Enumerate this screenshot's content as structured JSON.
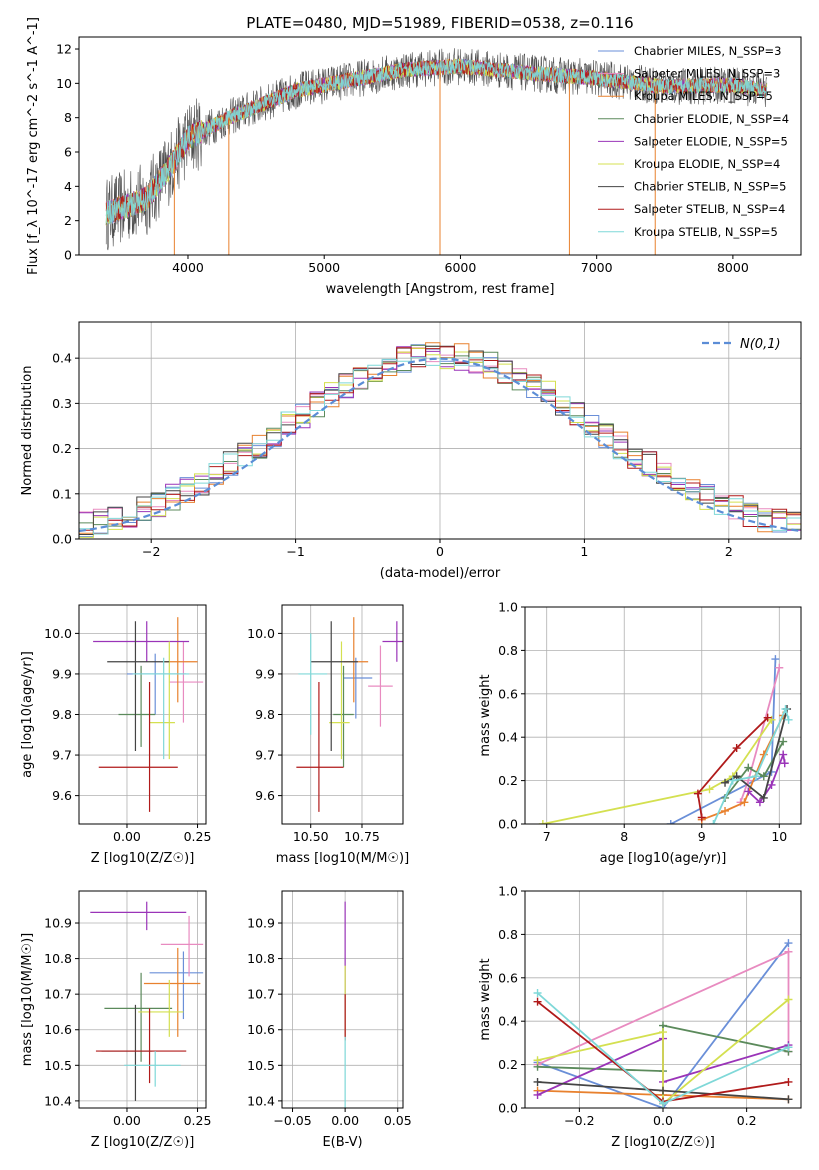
{
  "figure_title": "PLATE=0480, MJD=51989, FIBERID=0538, z=0.116",
  "legend_entries": [
    {
      "name": "Chabrier MILES, N_SSP=3",
      "color": "#6a8fd8"
    },
    {
      "name": "Salpeter MILES, N_SSP=3",
      "color": "#e88bc0"
    },
    {
      "name": "Kroupa MILES, N_SSP=5",
      "color": "#e8812e"
    },
    {
      "name": "Chabrier ELODIE, N_SSP=4",
      "color": "#5b8a5b"
    },
    {
      "name": "Salpeter ELODIE, N_SSP=5",
      "color": "#9a34b8"
    },
    {
      "name": "Kroupa ELODIE, N_SSP=4",
      "color": "#d4e050"
    },
    {
      "name": "Chabrier STELIB, N_SSP=5",
      "color": "#444444"
    },
    {
      "name": "Salpeter STELIB, N_SSP=4",
      "color": "#b01a1a"
    },
    {
      "name": "Kroupa STELIB, N_SSP=5",
      "color": "#7fd8d8"
    }
  ],
  "chart_data": [
    {
      "id": "spectrum",
      "type": "line",
      "xlabel": "wavelength [Angstrom, rest frame]",
      "ylabel": "Flux [f_λ 10^-17 erg cm^-2 s^-1 A^-1]",
      "xlim": [
        3200,
        8500
      ],
      "ylim": [
        0,
        12.7
      ],
      "xticks": [
        4000,
        5000,
        6000,
        7000,
        8000
      ],
      "yticks": [
        0,
        2,
        4,
        6,
        8,
        10,
        12
      ],
      "x_range_data": [
        3400,
        8250
      ],
      "continuum": [
        [
          3400,
          2.4
        ],
        [
          3700,
          3.3
        ],
        [
          3900,
          5.5
        ],
        [
          4000,
          6.8
        ],
        [
          4300,
          8.0
        ],
        [
          4800,
          9.6
        ],
        [
          5200,
          10.2
        ],
        [
          5600,
          10.8
        ],
        [
          6000,
          11.0
        ],
        [
          6500,
          10.6
        ],
        [
          7000,
          10.3
        ],
        [
          7500,
          9.8
        ],
        [
          8000,
          9.9
        ],
        [
          8250,
          9.6
        ]
      ],
      "drops": [
        [
          3900,
          0
        ],
        [
          4300,
          0
        ],
        [
          5850,
          0
        ],
        [
          6800,
          0
        ],
        [
          7430,
          0
        ]
      ]
    },
    {
      "id": "residuals",
      "type": "histogram",
      "xlabel": "(data-model)/error",
      "ylabel": "Normed distribution",
      "xlim": [
        -2.5,
        2.5
      ],
      "ylim": [
        0,
        0.48
      ],
      "xticks": [
        -2,
        -1,
        0,
        1,
        2
      ],
      "yticks": [
        0.0,
        0.1,
        0.2,
        0.3,
        0.4
      ],
      "normal_label": "N(0,1)",
      "bin_width": 0.1
    },
    {
      "id": "age_vs_Z",
      "type": "errorbar",
      "xlabel": "Z [log10(Z/Z☉)]",
      "ylabel": "age [log10(age/yr)]",
      "xlim": [
        -0.17,
        0.28
      ],
      "ylim": [
        9.53,
        10.07
      ],
      "xticks": [
        0.0,
        0.25
      ],
      "yticks": [
        9.6,
        9.7,
        9.8,
        9.9,
        10.0
      ],
      "points": [
        {
          "series": "Chabrier MILES",
          "x": 0.1,
          "y": 9.9,
          "xerr": [
            0.1,
            0.11
          ],
          "yerr": [
            0.1,
            0.05
          ]
        },
        {
          "series": "Salpeter MILES",
          "x": 0.2,
          "y": 9.88,
          "xerr": [
            0.05,
            0.07
          ],
          "yerr": [
            0.1,
            0.1
          ]
        },
        {
          "series": "Kroupa MILES",
          "x": 0.18,
          "y": 9.93,
          "xerr": [
            0.05,
            0.07
          ],
          "yerr": [
            0.1,
            0.11
          ]
        },
        {
          "series": "Chabrier ELODIE",
          "x": 0.05,
          "y": 9.8,
          "xerr": [
            0.08,
            0.05
          ],
          "yerr": [
            0.08,
            0.12
          ]
        },
        {
          "series": "Salpeter ELODIE",
          "x": 0.07,
          "y": 9.98,
          "xerr": [
            0.19,
            0.15
          ],
          "yerr": [
            0.05,
            0.05
          ]
        },
        {
          "series": "Kroupa ELODIE",
          "x": 0.15,
          "y": 9.78,
          "xerr": [
            0.07,
            0.02
          ],
          "yerr": [
            0.09,
            0.2
          ]
        },
        {
          "series": "Chabrier STELIB",
          "x": 0.03,
          "y": 9.93,
          "xerr": [
            0.1,
            0.12
          ],
          "yerr": [
            0.22,
            0.1
          ]
        },
        {
          "series": "Salpeter STELIB",
          "x": 0.08,
          "y": 9.67,
          "xerr": [
            0.18,
            0.1
          ],
          "yerr": [
            0.11,
            0.21
          ]
        },
        {
          "series": "Kroupa STELIB",
          "x": 0.13,
          "y": 9.9,
          "xerr": [
            0.11,
            0.09
          ],
          "yerr": [
            0.21,
            0.04
          ]
        }
      ]
    },
    {
      "id": "age_vs_mass",
      "type": "errorbar",
      "xlabel": "mass [log10(M/M☉)]",
      "ylabel": "",
      "xlim": [
        10.36,
        10.95
      ],
      "ylim": [
        9.53,
        10.07
      ],
      "xticks": [
        10.5,
        10.75
      ],
      "yticks": [
        9.6,
        9.7,
        9.8,
        9.9,
        10.0
      ],
      "points": [
        {
          "series": "Chabrier MILES",
          "x": 10.72,
          "y": 9.89,
          "xerr": [
            0.06,
            0.08
          ],
          "yerr": [
            0.1,
            0.05
          ]
        },
        {
          "series": "Salpeter MILES",
          "x": 10.84,
          "y": 9.87,
          "xerr": [
            0.06,
            0.06
          ],
          "yerr": [
            0.1,
            0.1
          ]
        },
        {
          "series": "Kroupa MILES",
          "x": 10.71,
          "y": 9.93,
          "xerr": [
            0.05,
            0.07
          ],
          "yerr": [
            0.1,
            0.11
          ]
        },
        {
          "series": "Chabrier ELODIE",
          "x": 10.66,
          "y": 9.8,
          "xerr": [
            0.05,
            0.05
          ],
          "yerr": [
            0.13,
            0.12
          ]
        },
        {
          "series": "Salpeter ELODIE",
          "x": 10.92,
          "y": 9.98,
          "xerr": [
            0.07,
            0.03
          ],
          "yerr": [
            0.05,
            0.05
          ]
        },
        {
          "series": "Kroupa ELODIE",
          "x": 10.65,
          "y": 9.78,
          "xerr": [
            0.06,
            0.04
          ],
          "yerr": [
            0.09,
            0.2
          ]
        },
        {
          "series": "Chabrier STELIB",
          "x": 10.6,
          "y": 9.93,
          "xerr": [
            0.1,
            0.13
          ],
          "yerr": [
            0.22,
            0.1
          ]
        },
        {
          "series": "Salpeter STELIB",
          "x": 10.54,
          "y": 9.67,
          "xerr": [
            0.11,
            0.12
          ],
          "yerr": [
            0.11,
            0.21
          ]
        },
        {
          "series": "Kroupa STELIB",
          "x": 10.5,
          "y": 9.9,
          "xerr": [
            0.06,
            0.08
          ],
          "yerr": [
            0.15,
            0.1
          ]
        }
      ]
    },
    {
      "id": "weight_vs_age",
      "type": "line",
      "xlabel": "age [log10(age/yr)]",
      "ylabel": "mass weight",
      "xlim": [
        6.72,
        10.28
      ],
      "ylim": [
        0,
        1
      ],
      "xticks": [
        7,
        8,
        9,
        10
      ],
      "yticks": [
        0.0,
        0.2,
        0.4,
        0.6,
        0.8,
        1.0
      ],
      "series": [
        {
          "name": "Chabrier MILES",
          "points": [
            [
              8.6,
              0.0
            ],
            [
              9.9,
              0.24
            ],
            [
              9.95,
              0.76
            ]
          ]
        },
        {
          "name": "Salpeter MILES",
          "points": [
            [
              9.5,
              0.1
            ],
            [
              9.6,
              0.2
            ],
            [
              10.0,
              0.72
            ]
          ]
        },
        {
          "name": "Kroupa MILES",
          "points": [
            [
              9.0,
              0.02
            ],
            [
              9.3,
              0.06
            ],
            [
              9.55,
              0.1
            ],
            [
              9.8,
              0.32
            ],
            [
              10.05,
              0.5
            ]
          ]
        },
        {
          "name": "Chabrier ELODIE",
          "points": [
            [
              9.3,
              0.12
            ],
            [
              9.6,
              0.26
            ],
            [
              9.8,
              0.22
            ],
            [
              10.05,
              0.38
            ]
          ]
        },
        {
          "name": "Salpeter ELODIE",
          "points": [
            [
              9.6,
              0.15
            ],
            [
              9.75,
              0.1
            ],
            [
              9.9,
              0.18
            ],
            [
              10.05,
              0.32
            ],
            [
              10.07,
              0.28
            ]
          ]
        },
        {
          "name": "Kroupa ELODIE",
          "points": [
            [
              6.95,
              0.0
            ],
            [
              9.1,
              0.16
            ],
            [
              9.4,
              0.22
            ],
            [
              9.9,
              0.48
            ]
          ]
        },
        {
          "name": "Chabrier STELIB",
          "points": [
            [
              9.3,
              0.19
            ],
            [
              9.45,
              0.22
            ],
            [
              9.8,
              0.12
            ],
            [
              10.1,
              0.53
            ]
          ]
        },
        {
          "name": "Salpeter STELIB",
          "points": [
            [
              9.0,
              0.03
            ],
            [
              8.95,
              0.14
            ],
            [
              9.45,
              0.35
            ],
            [
              9.85,
              0.49
            ]
          ]
        },
        {
          "name": "Kroupa STELIB",
          "points": [
            [
              9.15,
              0.0
            ],
            [
              9.4,
              0.2
            ],
            [
              9.7,
              0.22
            ],
            [
              10.08,
              0.53
            ],
            [
              10.12,
              0.48
            ]
          ]
        }
      ]
    },
    {
      "id": "mass_vs_Z",
      "type": "errorbar",
      "xlabel": "Z [log10(Z/Z☉)]",
      "ylabel": "mass [log10(M/M☉)]",
      "xlim": [
        -0.17,
        0.28
      ],
      "ylim": [
        10.38,
        10.99
      ],
      "xticks": [
        0.0,
        0.25
      ],
      "yticks": [
        10.4,
        10.5,
        10.6,
        10.7,
        10.8,
        10.9
      ],
      "points": [
        {
          "series": "Chabrier MILES",
          "x": 0.2,
          "y": 10.76,
          "xerr": [
            0.12,
            0.07
          ],
          "yerr": [
            0.13,
            0.06
          ]
        },
        {
          "series": "Salpeter MILES",
          "x": 0.22,
          "y": 10.84,
          "xerr": [
            0.1,
            0.05
          ],
          "yerr": [
            0.09,
            0.08
          ]
        },
        {
          "series": "Kroupa MILES",
          "x": 0.18,
          "y": 10.73,
          "xerr": [
            0.12,
            0.08
          ],
          "yerr": [
            0.15,
            0.1
          ]
        },
        {
          "series": "Chabrier ELODIE",
          "x": 0.05,
          "y": 10.66,
          "xerr": [
            0.13,
            0.11
          ],
          "yerr": [
            0.15,
            0.1
          ]
        },
        {
          "series": "Salpeter ELODIE",
          "x": 0.07,
          "y": 10.93,
          "xerr": [
            0.2,
            0.14
          ],
          "yerr": [
            0.05,
            0.03
          ]
        },
        {
          "series": "Kroupa ELODIE",
          "x": 0.15,
          "y": 10.65,
          "xerr": [
            0.11,
            0.05
          ],
          "yerr": [
            0.07,
            0.09
          ]
        },
        {
          "series": "Chabrier STELIB",
          "x": 0.03,
          "y": 10.54,
          "xerr": [
            0.12,
            0.06
          ],
          "yerr": [
            0.14,
            0.13
          ]
        },
        {
          "series": "Salpeter STELIB",
          "x": 0.08,
          "y": 10.54,
          "xerr": [
            0.19,
            0.13
          ],
          "yerr": [
            0.09,
            0.12
          ]
        },
        {
          "series": "Kroupa STELIB",
          "x": 0.1,
          "y": 10.5,
          "xerr": [
            0.11,
            0.09
          ],
          "yerr": [
            0.06,
            0.04
          ]
        }
      ]
    },
    {
      "id": "mass_vs_ebv",
      "type": "errorbar",
      "xlabel": "E(B-V)",
      "ylabel": "",
      "xlim": [
        -0.06,
        0.055
      ],
      "ylim": [
        10.38,
        10.99
      ],
      "xticks": [
        -0.05,
        0.0,
        0.05
      ],
      "yticks": [
        10.4,
        10.5,
        10.6,
        10.7,
        10.8,
        10.9
      ],
      "points": [
        {
          "series": "Salpeter ELODIE",
          "x": 0.0,
          "y": 10.7,
          "xerr": [
            0,
            0
          ],
          "yerr": [
            0.12,
            0.26
          ]
        },
        {
          "series": "Kroupa ELODIE",
          "x": 0.0,
          "y": 10.68,
          "xerr": [
            0,
            0
          ],
          "yerr": [
            0.1,
            0.1
          ]
        },
        {
          "series": "Salpeter STELIB",
          "x": 0.0,
          "y": 10.62,
          "xerr": [
            0,
            0
          ],
          "yerr": [
            0.05,
            0.08
          ]
        },
        {
          "series": "Kroupa STELIB",
          "x": 0.0,
          "y": 10.5,
          "xerr": [
            0,
            0
          ],
          "yerr": [
            0.12,
            0.08
          ]
        }
      ]
    },
    {
      "id": "weight_vs_Z",
      "type": "line",
      "xlabel": "Z [log10(Z/Z☉)]",
      "ylabel": "mass weight",
      "xlim": [
        -0.33,
        0.33
      ],
      "ylim": [
        0,
        1
      ],
      "xticks": [
        -0.2,
        0.0,
        0.2
      ],
      "yticks": [
        0.0,
        0.2,
        0.4,
        0.6,
        0.8,
        1.0
      ],
      "series": [
        {
          "name": "Chabrier MILES",
          "points": [
            [
              -0.3,
              0.21
            ],
            [
              0.0,
              0.0
            ],
            [
              0.3,
              0.76
            ]
          ]
        },
        {
          "name": "Salpeter MILES",
          "points": [
            [
              -0.3,
              0.2
            ],
            [
              0.3,
              0.72
            ],
            [
              0.3,
              0.26
            ]
          ]
        },
        {
          "name": "Kroupa MILES",
          "points": [
            [
              -0.3,
              0.08
            ],
            [
              0.0,
              0.06
            ],
            [
              0.3,
              0.04
            ]
          ]
        },
        {
          "name": "Chabrier ELODIE",
          "points": [
            [
              -0.3,
              0.19
            ],
            [
              0.0,
              0.17
            ],
            [
              0.0,
              0.38
            ],
            [
              0.3,
              0.26
            ]
          ]
        },
        {
          "name": "Salpeter ELODIE",
          "points": [
            [
              -0.3,
              0.06
            ],
            [
              0.0,
              0.32
            ],
            [
              0.0,
              0.12
            ],
            [
              0.3,
              0.29
            ]
          ]
        },
        {
          "name": "Kroupa ELODIE",
          "points": [
            [
              -0.3,
              0.22
            ],
            [
              0.0,
              0.35
            ],
            [
              0.0,
              0.02
            ],
            [
              0.3,
              0.5
            ]
          ]
        },
        {
          "name": "Chabrier STELIB",
          "points": [
            [
              -0.3,
              0.12
            ],
            [
              0.0,
              0.08
            ],
            [
              0.3,
              0.04
            ]
          ]
        },
        {
          "name": "Salpeter STELIB",
          "points": [
            [
              -0.3,
              0.49
            ],
            [
              0.0,
              0.03
            ],
            [
              0.3,
              0.12
            ]
          ]
        },
        {
          "name": "Kroupa STELIB",
          "points": [
            [
              -0.3,
              0.53
            ],
            [
              0.0,
              0.02
            ],
            [
              0.3,
              0.28
            ]
          ]
        }
      ]
    }
  ]
}
